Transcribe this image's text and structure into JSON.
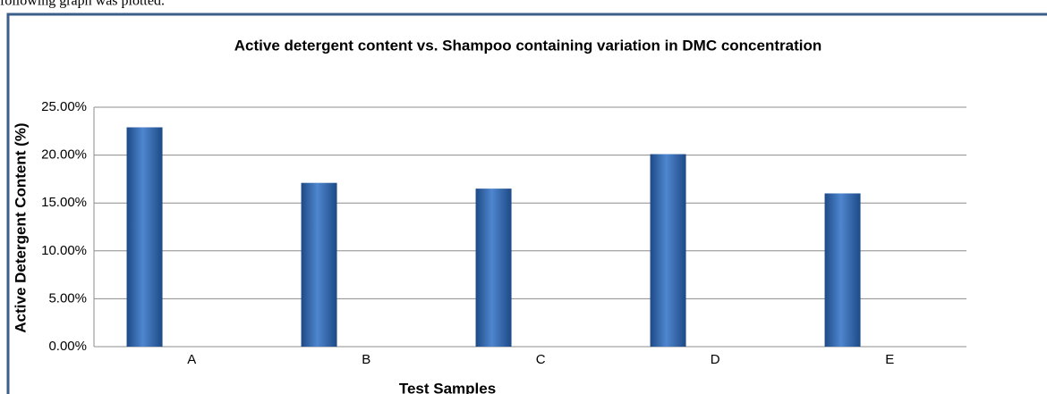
{
  "intro": "following graph was plotted.",
  "chart_data": {
    "type": "bar",
    "title": "Active detergent content vs. Shampoo containing variation in DMC concentration",
    "xlabel": "Test Samples",
    "ylabel": "Active Detergent Content (%)",
    "categories": [
      "A",
      "B",
      "C",
      "D",
      "E"
    ],
    "values": [
      22.9,
      17.1,
      16.5,
      20.1,
      16.0
    ],
    "color": "#2f64a8",
    "ylim": [
      0,
      25
    ],
    "yticks": [
      {
        "value": 0,
        "label": "0.00%"
      },
      {
        "value": 5,
        "label": "5.00%"
      },
      {
        "value": 10,
        "label": "10.00%"
      },
      {
        "value": 15,
        "label": "15.00%"
      },
      {
        "value": 20,
        "label": "20.00%"
      },
      {
        "value": 25,
        "label": "25.00%"
      }
    ],
    "grid": true
  }
}
